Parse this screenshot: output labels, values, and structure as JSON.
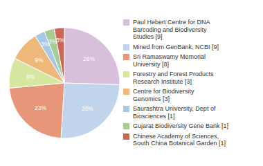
{
  "chart_data": {
    "type": "pie",
    "categories": [
      "Paul Hebert Centre for DNA\nBarcoding and Biodiversity\nStudies [9]",
      "Mined from GenBank, NCBI [9]",
      "Sri Ramaswamy Memorial\nUniversity [8]",
      "Forestry and Forest Products\nResearch Institute [3]",
      "Centre for Biodiversity\nGenomics [3]",
      "Saurashtra University, Dept of\nBiosciences [1]",
      "Gujarat Biodiversity Gene Bank [1]",
      "Chinese Academy of Sciences,\nSouth China Botanical Garden [1]"
    ],
    "values": [
      26,
      26,
      23,
      9,
      9,
      3,
      3,
      3
    ],
    "value_labels": [
      "26%",
      "26%",
      "23%",
      "9%",
      "9%",
      "3%",
      "3%",
      "3%"
    ],
    "colors": [
      "#d8bfdb",
      "#c0d4eb",
      "#e8967a",
      "#d6e8a0",
      "#edb87a",
      "#a8c8e8",
      "#a8cc96",
      "#cc6655"
    ],
    "data_labels": true,
    "legend": "right"
  }
}
